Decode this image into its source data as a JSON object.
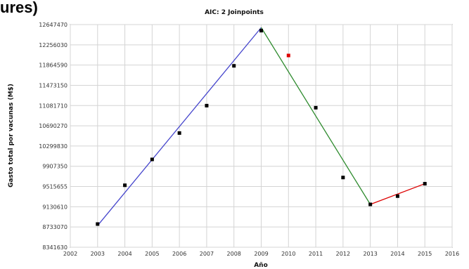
{
  "page": {
    "title_fragment": "ures)"
  },
  "chart_data": {
    "type": "scatter",
    "title": "AIC: 2 Joinpoints",
    "xlabel": "Año",
    "ylabel": "Gasto total por vacunas (M$)",
    "x_ticks": [
      "2002",
      "2003",
      "2004",
      "2005",
      "2006",
      "2007",
      "2008",
      "2009",
      "2010",
      "2011",
      "2012",
      "2013",
      "2014",
      "2015",
      "2016"
    ],
    "y_ticks": [
      "8341630",
      "8733070",
      "9130610",
      "9515655",
      "9907350",
      "10299830",
      "10690270",
      "11081710",
      "11473150",
      "11864590",
      "12256030",
      "12647470"
    ],
    "xlim": [
      2002,
      2016
    ],
    "ylim": [
      8341630,
      12647470
    ],
    "grid": true,
    "series": [
      {
        "color": "#000000",
        "marker": "square",
        "points": [
          {
            "x": 2003,
            "y": 8790000
          },
          {
            "x": 2004,
            "y": 9540000
          },
          {
            "x": 2005,
            "y": 10040000
          },
          {
            "x": 2006,
            "y": 10550000
          },
          {
            "x": 2007,
            "y": 11080000
          },
          {
            "x": 2008,
            "y": 11850000
          },
          {
            "x": 2009,
            "y": 12530000
          },
          {
            "x": 2011,
            "y": 11040000
          },
          {
            "x": 2012,
            "y": 9690000
          },
          {
            "x": 2013,
            "y": 9170000
          },
          {
            "x": 2014,
            "y": 9330000
          },
          {
            "x": 2015,
            "y": 9570000
          }
        ]
      },
      {
        "color": "#dd0000",
        "marker": "square",
        "points": [
          {
            "x": 2010,
            "y": 12050000
          }
        ]
      }
    ],
    "fit_segments": [
      {
        "color": "#4444cc",
        "from": [
          2003,
          8760000
        ],
        "to": [
          2009,
          12590000
        ]
      },
      {
        "color": "#2e8b2e",
        "from": [
          2009,
          12590000
        ],
        "to": [
          2013,
          9170000
        ]
      },
      {
        "color": "#dd0000",
        "from": [
          2013,
          9170000
        ],
        "to": [
          2015,
          9570000
        ]
      }
    ]
  }
}
